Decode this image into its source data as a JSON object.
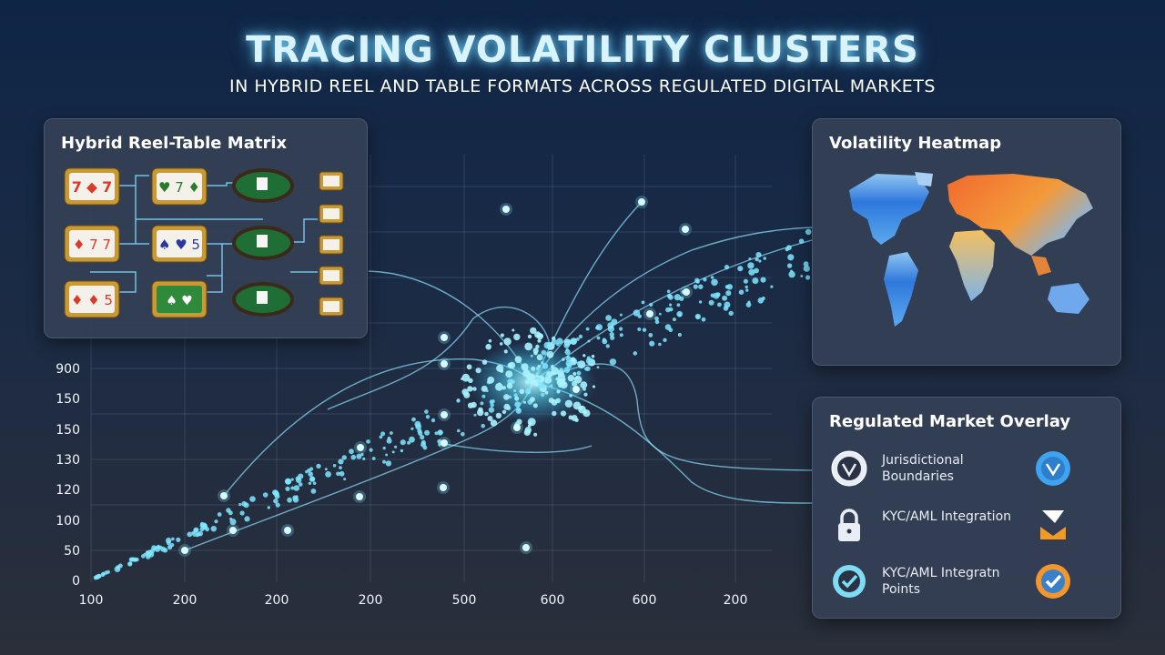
{
  "header": {
    "title": "TRACING VOLATILITY CLUSTERS",
    "subtitle": "IN HYBRID REEL AND TABLE FORMATS ACROSS REGULATED DIGITAL MARKETS"
  },
  "matrix_panel": {
    "title": "Hybrid Reel-Table Matrix",
    "icons": [
      "slot-reel-icon",
      "poker-table-icon",
      "mini-reel-icon"
    ]
  },
  "heatmap_panel": {
    "title": "Volatility Heatmap",
    "colors": {
      "cool": "#3b8ee8",
      "warm": "#f08a2e",
      "hot": "#e9552a"
    }
  },
  "overlay_panel": {
    "title": "Regulated Market Overlay",
    "items": [
      {
        "label": "Jurisdictional Boundaries",
        "icon": "badge-icon",
        "icon2": "shield-badge-icon"
      },
      {
        "label": "KYC/AML Integration",
        "icon": "lock-icon",
        "icon2": "filter-icon"
      },
      {
        "label": "KYC/AML Integratn Points",
        "icon": "check-badge-icon",
        "icon2": "check-badge-orange-icon"
      }
    ]
  },
  "chart_data": {
    "type": "scatter",
    "x_tick_labels": [
      "100",
      "200",
      "200",
      "200",
      "500",
      "600",
      "600",
      "200"
    ],
    "y_tick_labels": [
      "0",
      "50",
      "100",
      "120",
      "130",
      "150",
      "150",
      "900"
    ],
    "accent_color": "#7fe6ff",
    "grid": true
  }
}
